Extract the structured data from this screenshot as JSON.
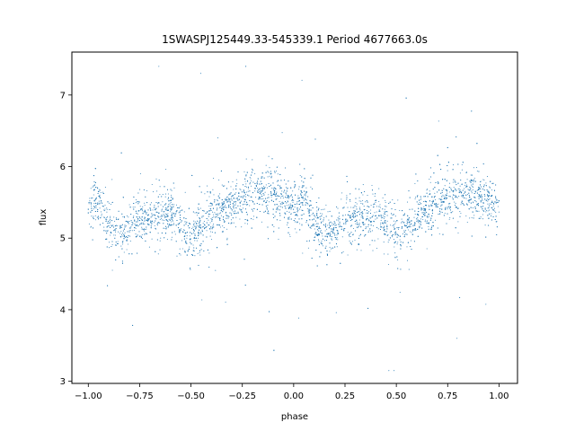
{
  "chart_data": {
    "type": "scatter",
    "title": "1SWASPJ125449.33-545339.1 Period 4677663.0s",
    "xlabel": "phase",
    "ylabel": "flux",
    "xlim": [
      -1.08,
      1.09
    ],
    "ylim": [
      2.97,
      7.6
    ],
    "xticks": [
      -1.0,
      -0.75,
      -0.5,
      -0.25,
      0.0,
      0.25,
      0.5,
      0.75,
      1.0
    ],
    "xtick_labels": [
      "−1.00",
      "−0.75",
      "−0.50",
      "−0.25",
      "0.00",
      "0.25",
      "0.50",
      "0.75",
      "1.00"
    ],
    "yticks": [
      3,
      4,
      5,
      6,
      7
    ],
    "ytick_labels": [
      "3",
      "4",
      "5",
      "6",
      "7"
    ],
    "grid": false,
    "legend": "none",
    "marker_color": "#1f77b4",
    "series": [
      {
        "phase_profile": [
          {
            "x": -1.0,
            "y": 5.45
          },
          {
            "x": -0.95,
            "y": 5.55
          },
          {
            "x": -0.9,
            "y": 5.2
          },
          {
            "x": -0.85,
            "y": 5.05
          },
          {
            "x": -0.8,
            "y": 5.1
          },
          {
            "x": -0.75,
            "y": 5.25
          },
          {
            "x": -0.7,
            "y": 5.3
          },
          {
            "x": -0.65,
            "y": 5.35
          },
          {
            "x": -0.6,
            "y": 5.35
          },
          {
            "x": -0.55,
            "y": 5.2
          },
          {
            "x": -0.5,
            "y": 5.0
          },
          {
            "x": -0.45,
            "y": 5.15
          },
          {
            "x": -0.4,
            "y": 5.3
          },
          {
            "x": -0.35,
            "y": 5.4
          },
          {
            "x": -0.3,
            "y": 5.5
          },
          {
            "x": -0.25,
            "y": 5.55
          },
          {
            "x": -0.2,
            "y": 5.6
          },
          {
            "x": -0.15,
            "y": 5.65
          },
          {
            "x": -0.1,
            "y": 5.6
          },
          {
            "x": -0.05,
            "y": 5.5
          },
          {
            "x": 0.0,
            "y": 5.45
          },
          {
            "x": 0.05,
            "y": 5.55
          },
          {
            "x": 0.1,
            "y": 5.2
          },
          {
            "x": 0.15,
            "y": 5.05
          },
          {
            "x": 0.2,
            "y": 5.1
          },
          {
            "x": 0.25,
            "y": 5.25
          },
          {
            "x": 0.3,
            "y": 5.3
          },
          {
            "x": 0.35,
            "y": 5.35
          },
          {
            "x": 0.4,
            "y": 5.35
          },
          {
            "x": 0.45,
            "y": 5.2
          },
          {
            "x": 0.5,
            "y": 5.0
          },
          {
            "x": 0.55,
            "y": 5.15
          },
          {
            "x": 0.6,
            "y": 5.3
          },
          {
            "x": 0.65,
            "y": 5.4
          },
          {
            "x": 0.7,
            "y": 5.5
          },
          {
            "x": 0.75,
            "y": 5.55
          },
          {
            "x": 0.8,
            "y": 5.6
          },
          {
            "x": 0.85,
            "y": 5.65
          },
          {
            "x": 0.9,
            "y": 5.6
          },
          {
            "x": 0.95,
            "y": 5.5
          },
          {
            "x": 1.0,
            "y": 5.45
          }
        ],
        "scatter_half_width": 0.45
      }
    ]
  }
}
